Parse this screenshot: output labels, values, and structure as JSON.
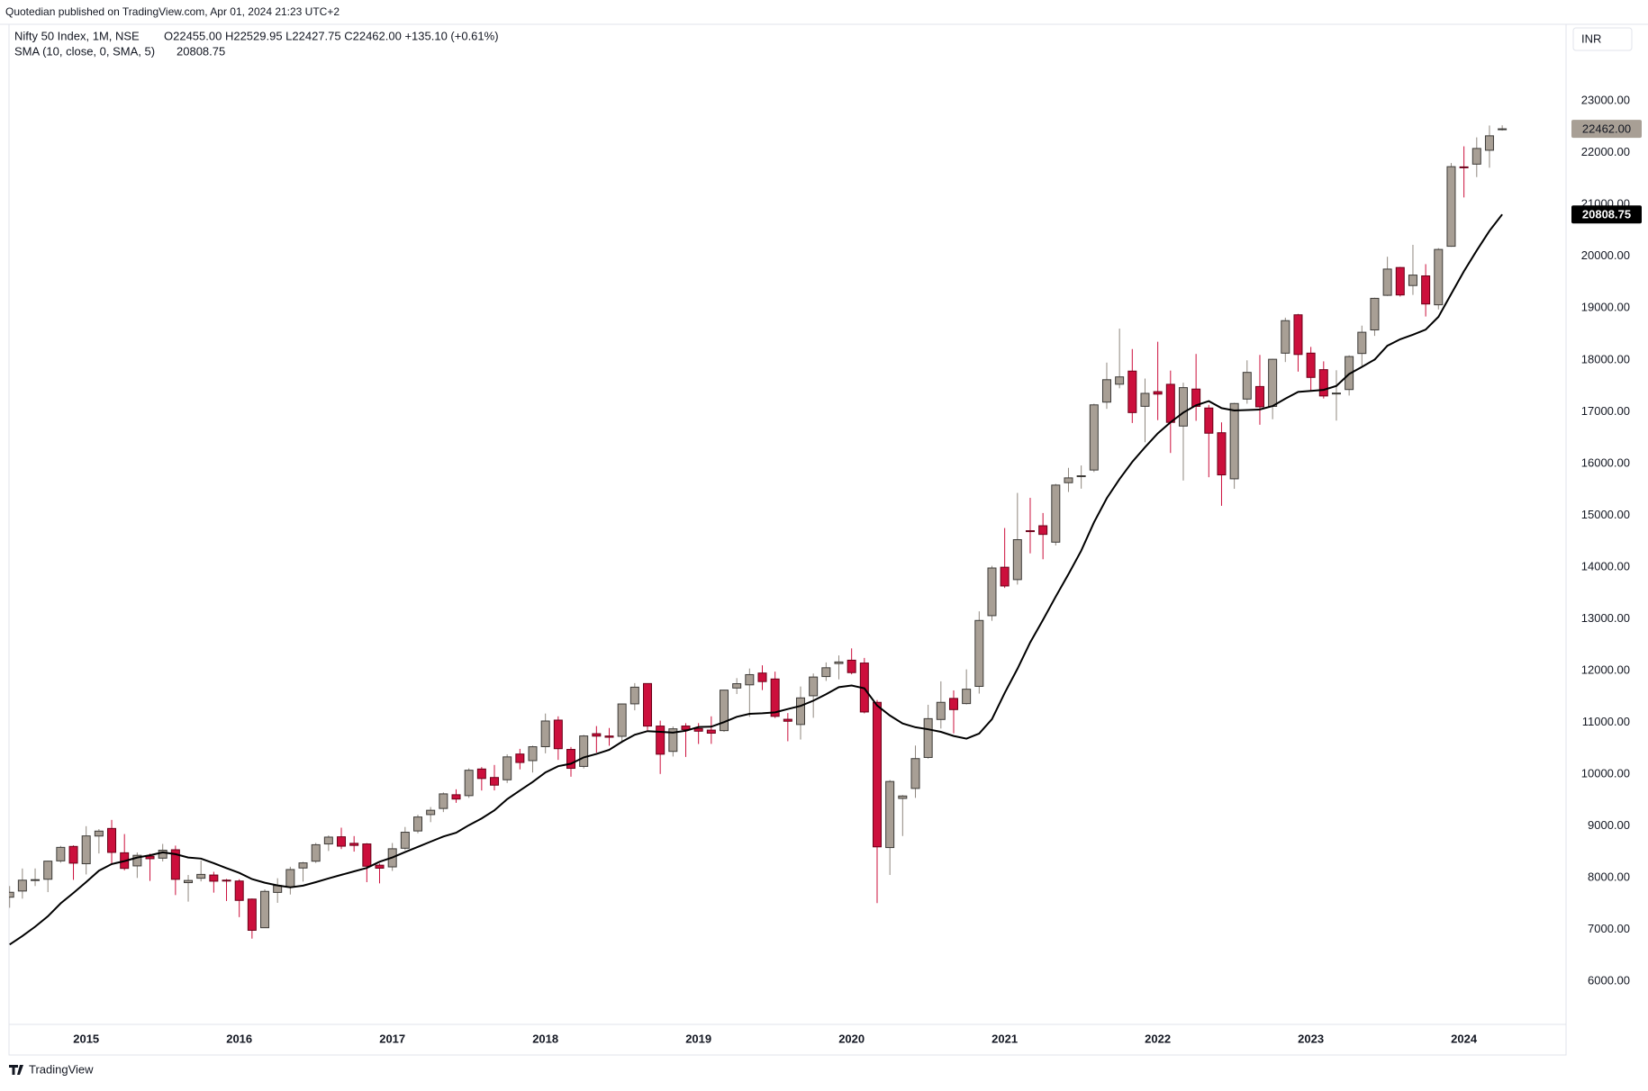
{
  "header": {
    "published": "Quotedian published on TradingView.com, Apr 01, 2024 21:23 UTC+2",
    "currency": "INR"
  },
  "footer": {
    "brand": "TradingView"
  },
  "chart_data": {
    "type": "candlestick",
    "info": "O22455.00 H22529.95 L22427.75 C22462.00 +135.10 (+0.61%)",
    "categories": [
      null,
      null,
      null,
      null,
      null,
      null,
      null,
      null,
      null,
      null,
      null,
      null,
      null,
      null,
      null,
      null,
      null,
      null,
      null,
      null,
      null,
      null,
      null,
      null,
      null,
      null,
      null,
      null,
      null,
      null,
      null,
      null,
      null,
      null,
      null,
      null,
      null,
      null,
      null,
      null,
      null,
      null,
      null,
      null,
      null,
      null,
      null,
      null,
      null,
      null,
      null,
      null,
      null,
      null,
      null,
      null,
      null,
      null,
      null,
      null,
      null,
      null,
      null,
      null,
      null,
      null,
      null,
      null,
      null,
      null,
      null,
      null,
      null,
      null,
      null,
      null,
      null,
      null,
      null,
      null,
      null,
      null,
      null,
      null,
      null,
      null,
      null,
      null,
      null,
      null,
      null,
      null,
      null,
      null,
      null,
      null,
      null,
      null,
      null,
      null,
      null,
      null,
      null,
      null,
      null,
      null,
      null,
      null,
      null,
      null,
      null,
      null,
      null,
      null,
      null,
      null,
      null,
      null
    ],
    "xticks": [
      {
        "value": 6,
        "label": "2015"
      },
      {
        "value": 18,
        "label": "2016"
      },
      {
        "value": 30,
        "label": "2017"
      },
      {
        "value": 42,
        "label": "2018"
      },
      {
        "value": 54,
        "label": "2019"
      },
      {
        "value": 66,
        "label": "2020"
      },
      {
        "value": 78,
        "label": "2021"
      },
      {
        "value": 90,
        "label": "2022"
      },
      {
        "value": 102,
        "label": "2023"
      },
      {
        "value": 114,
        "label": "2024"
      }
    ],
    "ylim": [
      5170,
      24480
    ],
    "yticks": [
      {
        "value": 6000,
        "label": "6000.00"
      },
      {
        "value": 7000,
        "label": "7000.00"
      },
      {
        "value": 8000,
        "label": "8000.00"
      },
      {
        "value": 9000,
        "label": "9000.00"
      },
      {
        "value": 10000,
        "label": "10000.00"
      },
      {
        "value": 11000,
        "label": "11000.00"
      },
      {
        "value": 12000,
        "label": "12000.00"
      },
      {
        "value": 13000,
        "label": "13000.00"
      },
      {
        "value": 14000,
        "label": "14000.00"
      },
      {
        "value": 15000,
        "label": "15000.00"
      },
      {
        "value": 16000,
        "label": "16000.00"
      },
      {
        "value": 17000,
        "label": "17000.00"
      },
      {
        "value": 18000,
        "label": "18000.00"
      },
      {
        "value": 19000,
        "label": "19000.00"
      },
      {
        "value": 20000,
        "label": "20000.00"
      },
      {
        "value": 21000,
        "label": "21000.00"
      },
      {
        "value": 22000,
        "label": "22000.00"
      },
      {
        "value": 23000,
        "label": "23000.00"
      }
    ],
    "grid": false,
    "series": [
      {
        "name": "Nifty 50 Index, 1M, NSE",
        "up_color": "#a89f95",
        "down_color": "#cc0f3c",
        "close_label": "22462.00",
        "open": [
          7626,
          7745,
          7960,
          7972,
          8327,
          8606,
          8272,
          8807,
          8953,
          8483,
          8230,
          8417,
          8380,
          8542,
          7907,
          7992,
          8054,
          7955,
          7938,
          7589,
          7036,
          7718,
          7822,
          8190,
          8321,
          8654,
          8792,
          8666,
          8654,
          8244,
          8211,
          8571,
          8905,
          9221,
          9339,
          9604,
          9587,
          10101,
          9937,
          9893,
          10390,
          10263,
          10532,
          11045,
          10479,
          10151,
          10783,
          10738,
          10732,
          11359,
          11751,
          10930,
          10441,
          10931,
          10882,
          10852,
          10842,
          11665,
          11726,
          11954,
          11839,
          11061,
          10960,
          11515,
          11886,
          12137,
          12202,
          12147,
          11388,
          8584,
          9533,
          9726,
          10324,
          11057,
          11464,
          11364,
          11697,
          13062,
          13997,
          13758,
          14702,
          14798,
          14481,
          15629,
          15755,
          15874,
          17185,
          17531,
          17784,
          17104,
          17387,
          17529,
          16723,
          17437,
          17071,
          16594,
          15704,
          17244,
          17486,
          17102,
          18130,
          18871,
          18131,
          17812,
          17360,
          17428,
          18124,
          18579,
          19247,
          19784,
          19436,
          19622,
          19064,
          20194,
          21727,
          21780,
          22048,
          22455
        ],
        "high": [
          7841,
          8180,
          8181,
          8331,
          8617,
          8627,
          8997,
          8941,
          9119,
          8845,
          8490,
          8468,
          8655,
          8622,
          8055,
          8336,
          8116,
          7979,
          7973,
          7600,
          7777,
          7992,
          8214,
          8308,
          8674,
          8819,
          8968,
          8806,
          8670,
          8274,
          8672,
          8982,
          9218,
          9367,
          9649,
          9709,
          10115,
          10138,
          10179,
          10385,
          10490,
          10552,
          11172,
          11118,
          10526,
          10760,
          10930,
          10893,
          11366,
          11760,
          11752,
          11035,
          10922,
          10985,
          10987,
          11118,
          11630,
          11856,
          12041,
          12103,
          11981,
          11181,
          11694,
          11945,
          12159,
          12294,
          12430,
          12246,
          11433,
          9889,
          9598,
          10554,
          11341,
          11794,
          11619,
          12025,
          13145,
          14024,
          14754,
          15432,
          15337,
          15044,
          15606,
          15916,
          15962,
          17153,
          17948,
          18604,
          18210,
          17640,
          18351,
          17794,
          17560,
          18115,
          17132,
          16794,
          17172,
          17992,
          18096,
          18022,
          18816,
          18888,
          18251,
          17972,
          17800,
          18089,
          18662,
          19201,
          19992,
          19796,
          20222,
          19849,
          20158,
          21801,
          22124,
          22297,
          22526,
          22529.95
        ],
        "low": [
          7422,
          7598,
          7841,
          7724,
          8291,
          7961,
          8065,
          8470,
          8269,
          8144,
          7998,
          7940,
          8316,
          7667,
          7540,
          7931,
          7714,
          7552,
          7241,
          6826,
          7035,
          7517,
          7678,
          7927,
          8287,
          8518,
          8555,
          8506,
          7916,
          7893,
          8133,
          8537,
          8860,
          9075,
          9269,
          9448,
          9543,
          9686,
          9688,
          9831,
          10094,
          10033,
          10404,
          10277,
          9952,
          10111,
          10418,
          10550,
          10605,
          11234,
          10850,
          10005,
          10342,
          10334,
          10584,
          10586,
          10818,
          11549,
          11108,
          11625,
          11085,
          10637,
          10670,
          11090,
          11802,
          11832,
          11929,
          11175,
          7511,
          8055,
          8807,
          9544,
          10300,
          10882,
          10790,
          11347,
          11557,
          12962,
          13597,
          13662,
          14265,
          14151,
          14417,
          15450,
          15514,
          15835,
          17055,
          17452,
          16782,
          16410,
          16837,
          16203,
          15671,
          16824,
          15735,
          15183,
          15511,
          17154,
          16748,
          16855,
          17959,
          17774,
          17405,
          17255,
          16828,
          17312,
          17886,
          18464,
          19234,
          19224,
          19255,
          18838,
          18973,
          20184,
          21137,
          21530,
          21711,
          22427.75
        ],
        "close": [
          7721,
          7954,
          7965,
          8322,
          8588,
          8283,
          8809,
          8902,
          8491,
          8182,
          8434,
          8369,
          8533,
          7971,
          7949,
          8066,
          7935,
          7946,
          7564,
          6987,
          7738,
          7850,
          8160,
          8288,
          8639,
          8786,
          8611,
          8626,
          8224,
          8186,
          8561,
          8880,
          9174,
          9304,
          9621,
          9521,
          10077,
          9918,
          9789,
          10335,
          10227,
          10531,
          11028,
          10493,
          10114,
          10739,
          10736,
          10714,
          11357,
          11681,
          10930,
          10387,
          10877,
          10863,
          10831,
          10793,
          11624,
          11748,
          11923,
          11789,
          11118,
          11023,
          11474,
          11877,
          12056,
          12168,
          11962,
          11202,
          8598,
          9860,
          9580,
          10302,
          11073,
          11388,
          11248,
          11642,
          12969,
          13982,
          13635,
          14529,
          14691,
          14631,
          15583,
          15722,
          15763,
          17132,
          17618,
          17672,
          16983,
          17354,
          17340,
          16794,
          17465,
          17103,
          16585,
          15780,
          17158,
          17759,
          17094,
          18012,
          18758,
          18105,
          17662,
          17304,
          17360,
          18065,
          18534,
          19189,
          19754,
          19254,
          19638,
          19080,
          20133,
          21731,
          21726,
          22083,
          22327,
          22462
        ]
      }
    ],
    "sma": {
      "name": "SMA (10, close, 0, SMA, 5)",
      "color": "#000000",
      "values": [
        6711,
        6876,
        7055,
        7257,
        7507,
        7707,
        7918,
        8139,
        8265,
        8322,
        8393,
        8435,
        8491,
        8456,
        8392,
        8371,
        8283,
        8188,
        8095,
        7975,
        7906,
        7854,
        7817,
        7848,
        7917,
        7989,
        8057,
        8125,
        8191,
        8311,
        8393,
        8496,
        8598,
        8699,
        8797,
        8871,
        9017,
        9147,
        9303,
        9518,
        9685,
        9850,
        10035,
        10154,
        10203,
        10325,
        10391,
        10471,
        10627,
        10762,
        10832,
        10818,
        10803,
        10840,
        10912,
        10917,
        11006,
        11109,
        11166,
        11177,
        11195,
        11259,
        11319,
        11420,
        11543,
        11680,
        11714,
        11659,
        11327,
        11134,
        10980,
        10908,
        10868,
        10819,
        10738,
        10686,
        10786,
        11064,
        11568,
        12035,
        12546,
        12979,
        13430,
        13863,
        14315,
        14864,
        15329,
        15698,
        16032,
        16315,
        16580,
        16796,
        16984,
        17122,
        17205,
        17069,
        17023,
        17032,
        17043,
        17109,
        17251,
        17382,
        17402,
        17422,
        17499,
        17728,
        17865,
        18008,
        18274,
        18399,
        18487,
        18584,
        18831,
        19274,
        19710,
        20112,
        20492,
        20808.75
      ]
    }
  }
}
